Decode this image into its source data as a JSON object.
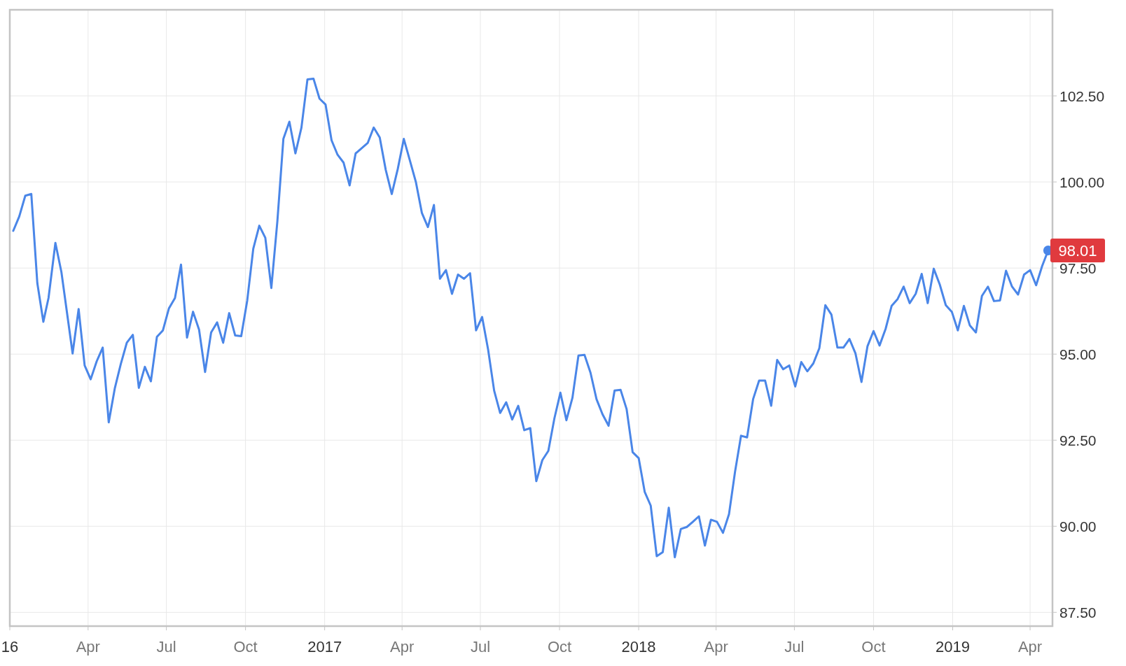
{
  "chart_data": {
    "type": "line",
    "x": [
      "2016-01-05",
      "2016-01-12",
      "2016-01-19",
      "2016-01-26",
      "2016-02-02",
      "2016-02-09",
      "2016-02-15",
      "2016-02-23",
      "2016-03-01",
      "2016-03-14",
      "2016-03-21",
      "2016-03-28",
      "2016-04-04",
      "2016-04-11",
      "2016-04-18",
      "2016-04-25",
      "2016-05-02",
      "2016-05-09",
      "2016-05-16",
      "2016-05-23",
      "2016-05-30",
      "2016-06-06",
      "2016-06-13",
      "2016-06-20",
      "2016-06-27",
      "2016-07-04",
      "2016-07-11",
      "2016-07-18",
      "2016-07-25",
      "2016-08-01",
      "2016-08-08",
      "2016-08-15",
      "2016-08-22",
      "2016-08-29",
      "2016-09-05",
      "2016-09-12",
      "2016-09-19",
      "2016-09-26",
      "2016-10-03",
      "2016-10-10",
      "2016-10-17",
      "2016-10-24",
      "2016-10-31",
      "2016-11-07",
      "2016-11-14",
      "2016-11-21",
      "2016-11-28",
      "2016-12-05",
      "2016-12-12",
      "2016-12-19",
      "2016-12-26",
      "2017-01-02",
      "2017-01-09",
      "2017-01-16",
      "2017-01-23",
      "2017-01-30",
      "2017-02-06",
      "2017-02-13",
      "2017-02-20",
      "2017-02-27",
      "2017-03-06",
      "2017-03-13",
      "2017-03-20",
      "2017-03-27",
      "2017-04-03",
      "2017-04-10",
      "2017-04-17",
      "2017-04-24",
      "2017-05-01",
      "2017-05-08",
      "2017-05-15",
      "2017-05-22",
      "2017-05-29",
      "2017-06-05",
      "2017-06-12",
      "2017-06-19",
      "2017-06-26",
      "2017-07-03",
      "2017-07-10",
      "2017-07-17",
      "2017-07-24",
      "2017-07-31",
      "2017-08-07",
      "2017-08-14",
      "2017-08-21",
      "2017-08-28",
      "2017-09-04",
      "2017-09-11",
      "2017-09-18",
      "2017-09-25",
      "2017-10-02",
      "2017-10-09",
      "2017-10-16",
      "2017-10-23",
      "2017-10-30",
      "2017-11-06",
      "2017-11-13",
      "2017-11-20",
      "2017-11-27",
      "2017-12-04",
      "2017-12-11",
      "2017-12-18",
      "2017-12-25",
      "2018-01-01",
      "2018-01-08",
      "2018-01-15",
      "2018-01-22",
      "2018-01-29",
      "2018-02-05",
      "2018-02-12",
      "2018-02-19",
      "2018-02-26",
      "2018-03-05",
      "2018-03-12",
      "2018-03-19",
      "2018-03-26",
      "2018-04-02",
      "2018-04-09",
      "2018-04-16",
      "2018-04-23",
      "2018-04-30",
      "2018-05-07",
      "2018-05-14",
      "2018-05-21",
      "2018-05-28",
      "2018-06-04",
      "2018-06-11",
      "2018-06-18",
      "2018-06-25",
      "2018-07-02",
      "2018-07-09",
      "2018-07-16",
      "2018-07-23",
      "2018-07-30",
      "2018-08-06",
      "2018-08-13",
      "2018-08-20",
      "2018-08-27",
      "2018-09-03",
      "2018-09-10",
      "2018-09-17",
      "2018-09-24",
      "2018-10-01",
      "2018-10-08",
      "2018-10-15",
      "2018-10-22",
      "2018-10-29",
      "2018-11-05",
      "2018-11-12",
      "2018-11-19",
      "2018-11-26",
      "2018-12-03",
      "2018-12-10",
      "2018-12-17",
      "2018-12-24",
      "2018-12-31",
      "2019-01-07",
      "2019-01-14",
      "2019-01-21",
      "2019-01-28",
      "2019-02-04",
      "2019-02-11",
      "2019-02-18",
      "2019-02-25",
      "2019-03-04",
      "2019-03-11",
      "2019-03-18",
      "2019-03-25",
      "2019-04-01",
      "2019-04-08",
      "2019-04-15",
      "2019-04-22"
    ],
    "series": [
      {
        "color": "#4a86e8",
        "values": [
          98.58,
          99.0,
          99.6,
          99.65,
          97.06,
          95.94,
          96.63,
          98.23,
          97.38,
          95.02,
          96.31,
          94.67,
          94.27,
          94.79,
          95.19,
          93.02,
          94.0,
          94.71,
          95.33,
          95.56,
          94.02,
          94.63,
          94.21,
          95.5,
          95.69,
          96.33,
          96.63,
          97.6,
          95.48,
          96.23,
          95.71,
          94.48,
          95.63,
          95.92,
          95.33,
          96.19,
          95.54,
          95.52,
          96.56,
          98.06,
          98.73,
          98.38,
          96.92,
          98.85,
          101.25,
          101.75,
          100.83,
          101.58,
          102.98,
          103.0,
          102.42,
          102.25,
          101.21,
          100.79,
          100.56,
          99.9,
          100.83,
          100.98,
          101.13,
          101.58,
          101.29,
          100.35,
          99.65,
          100.38,
          101.25,
          100.63,
          100.0,
          99.1,
          98.69,
          99.33,
          97.19,
          97.44,
          96.75,
          97.31,
          97.19,
          97.35,
          95.69,
          96.08,
          95.13,
          93.94,
          93.29,
          93.6,
          93.1,
          93.5,
          92.79,
          92.85,
          91.31,
          91.92,
          92.19,
          93.13,
          93.88,
          93.08,
          93.73,
          94.96,
          94.98,
          94.46,
          93.69,
          93.25,
          92.92,
          93.94,
          93.96,
          93.4,
          92.15,
          91.98,
          91.0,
          90.6,
          89.13,
          89.25,
          90.54,
          89.1,
          89.92,
          89.98,
          90.13,
          90.29,
          89.44,
          90.19,
          90.13,
          89.81,
          90.35,
          91.58,
          92.63,
          92.58,
          93.69,
          94.23,
          94.23,
          93.5,
          94.83,
          94.56,
          94.67,
          94.06,
          94.77,
          94.5,
          94.73,
          95.17,
          96.42,
          96.15,
          95.19,
          95.19,
          95.44,
          95.02,
          94.19,
          95.23,
          95.67,
          95.25,
          95.73,
          96.4,
          96.6,
          96.96,
          96.48,
          96.75,
          97.33,
          96.48,
          97.48,
          97.02,
          96.42,
          96.23,
          95.69,
          96.4,
          95.83,
          95.63,
          96.69,
          96.96,
          96.54,
          96.56,
          97.42,
          96.96,
          96.73,
          97.31,
          97.44,
          97.0,
          97.56,
          98.01
        ]
      }
    ],
    "xlim": [
      "2016-01-01",
      "2019-04-27"
    ],
    "xticks": [
      {
        "value": "2016-01-01",
        "label": "16"
      },
      {
        "value": "2016-04-01",
        "label": "Apr"
      },
      {
        "value": "2016-07-01",
        "label": "Jul"
      },
      {
        "value": "2016-10-01",
        "label": "Oct"
      },
      {
        "value": "2017-01-01",
        "label": "2017"
      },
      {
        "value": "2017-04-01",
        "label": "Apr"
      },
      {
        "value": "2017-07-01",
        "label": "Jul"
      },
      {
        "value": "2017-10-01",
        "label": "Oct"
      },
      {
        "value": "2018-01-01",
        "label": "2018"
      },
      {
        "value": "2018-04-01",
        "label": "Apr"
      },
      {
        "value": "2018-07-01",
        "label": "Jul"
      },
      {
        "value": "2018-10-01",
        "label": "Oct"
      },
      {
        "value": "2019-01-01",
        "label": "2019"
      },
      {
        "value": "2019-04-01",
        "label": "Apr"
      }
    ],
    "ylim": [
      87.1,
      105
    ],
    "yticks": [
      {
        "value": 87.5,
        "label": "87.50"
      },
      {
        "value": 90,
        "label": "90.00"
      },
      {
        "value": 92.5,
        "label": "92.50"
      },
      {
        "value": 95,
        "label": "95.00"
      },
      {
        "value": 97.5,
        "label": "97.50"
      },
      {
        "value": 100,
        "label": "100.00"
      },
      {
        "value": 102.5,
        "label": "102.50"
      }
    ],
    "grid": true,
    "annotations": [
      {
        "text": "98.01",
        "x": "2019-04-22",
        "y": 98.01
      }
    ]
  }
}
